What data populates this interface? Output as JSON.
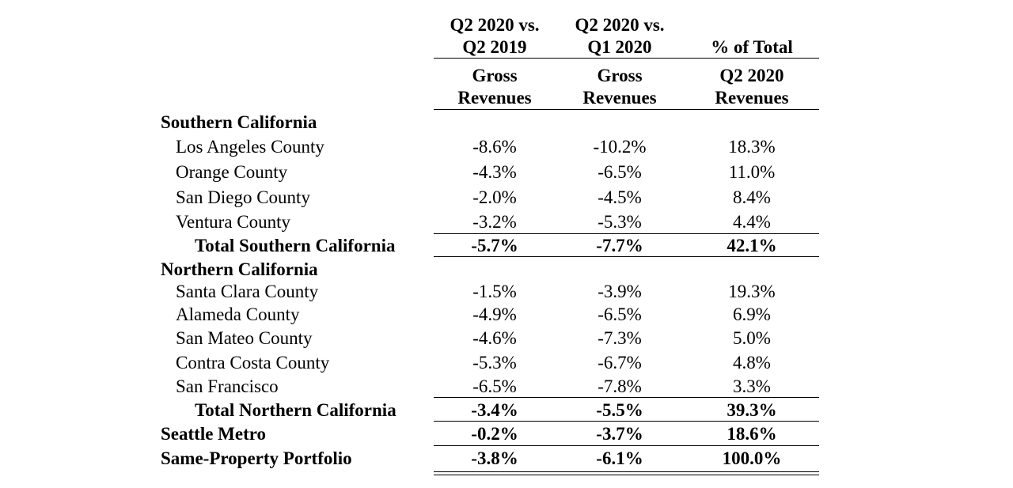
{
  "headers": {
    "col1": {
      "group_line1": "Q2 2020 vs.",
      "group_line2": "Q2 2019",
      "line1": "Gross",
      "line2": "Revenues"
    },
    "col2": {
      "group_line1": "Q2 2020 vs.",
      "group_line2": "Q1 2020",
      "line1": "Gross",
      "line2": "Revenues"
    },
    "col3": {
      "group_line1": "",
      "group_line2": "% of Total",
      "line1": "Q2 2020",
      "line2": "Revenues"
    }
  },
  "rows": [
    {
      "label": "Southern California",
      "type": "section",
      "c1": "",
      "c2": "",
      "c3": ""
    },
    {
      "label": "Los Angeles County",
      "type": "item",
      "c1": "-8.6%",
      "c2": "-10.2%",
      "c3": "18.3%"
    },
    {
      "label": "Orange County",
      "type": "item",
      "c1": "-4.3%",
      "c2": "-6.5%",
      "c3": "11.0%"
    },
    {
      "label": "San Diego County",
      "type": "item",
      "c1": "-2.0%",
      "c2": "-4.5%",
      "c3": "8.4%"
    },
    {
      "label": "Ventura County",
      "type": "item",
      "c1": "-3.2%",
      "c2": "-5.3%",
      "c3": "4.4%"
    },
    {
      "label": "Total Southern California",
      "type": "subtotal",
      "c1": "-5.7%",
      "c2": "-7.7%",
      "c3": "42.1%"
    },
    {
      "label": "Northern California",
      "type": "section",
      "c1": "",
      "c2": "",
      "c3": ""
    },
    {
      "label": "Santa Clara County",
      "type": "item",
      "c1": "-1.5%",
      "c2": "-3.9%",
      "c3": "19.3%"
    },
    {
      "label": "Alameda County",
      "type": "item",
      "c1": "-4.9%",
      "c2": "-6.5%",
      "c3": "6.9%"
    },
    {
      "label": "San Mateo County",
      "type": "item",
      "c1": "-4.6%",
      "c2": "-7.3%",
      "c3": "5.0%"
    },
    {
      "label": "Contra Costa County",
      "type": "item",
      "c1": "-5.3%",
      "c2": "-6.7%",
      "c3": "4.8%"
    },
    {
      "label": "San Francisco",
      "type": "item",
      "c1": "-6.5%",
      "c2": "-7.8%",
      "c3": "3.3%"
    },
    {
      "label": "Total Northern California",
      "type": "subtotal",
      "c1": "-3.4%",
      "c2": "-5.5%",
      "c3": "39.3%"
    },
    {
      "label": "Seattle Metro",
      "type": "region",
      "c1": "-0.2%",
      "c2": "-3.7%",
      "c3": "18.6%"
    },
    {
      "label": "Same-Property Portfolio",
      "type": "total",
      "c1": "-3.8%",
      "c2": "-6.1%",
      "c3": "100.0%"
    }
  ]
}
